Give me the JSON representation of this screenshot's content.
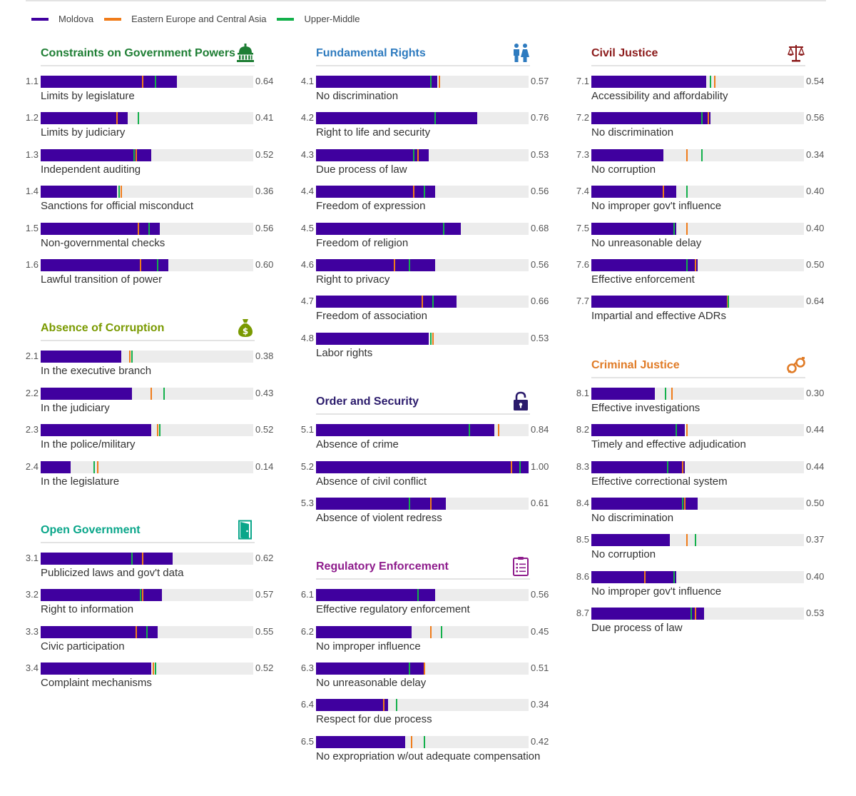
{
  "colors": {
    "moldova": "#40009f",
    "region": "#f07c1a",
    "income": "#13b04b",
    "track": "#ececec"
  },
  "legend": [
    {
      "key": "moldova",
      "label": "Moldova"
    },
    {
      "key": "region",
      "label": "Eastern Europe and Central Asia"
    },
    {
      "key": "income",
      "label": "Upper-Middle"
    }
  ],
  "chart_data": {
    "type": "bar",
    "orientation": "horizontal",
    "xlim": [
      0,
      1
    ],
    "series": [
      "Moldova",
      "Eastern Europe and Central Asia",
      "Upper-Middle"
    ],
    "columns": [
      [
        {
          "title": "Constraints on Government Powers",
          "color": "#1e7e34",
          "icon": "capitol-icon",
          "rows": [
            {
              "id": "1.1",
              "label": "Limits by legislature",
              "value": 0.64,
              "region": 0.48,
              "income": 0.54,
              "display": "0.64"
            },
            {
              "id": "1.2",
              "label": "Limits by judiciary",
              "value": 0.41,
              "region": 0.36,
              "income": 0.46,
              "display": "0.41"
            },
            {
              "id": "1.3",
              "label": "Independent auditing",
              "value": 0.52,
              "region": 0.45,
              "income": 0.44,
              "display": "0.52"
            },
            {
              "id": "1.4",
              "label": "Sanctions for official misconduct",
              "value": 0.36,
              "region": 0.38,
              "income": 0.37,
              "display": "0.36"
            },
            {
              "id": "1.5",
              "label": "Non-governmental checks",
              "value": 0.56,
              "region": 0.46,
              "income": 0.51,
              "display": "0.56"
            },
            {
              "id": "1.6",
              "label": "Lawful transition of power",
              "value": 0.6,
              "region": 0.47,
              "income": 0.55,
              "display": "0.60"
            }
          ]
        },
        {
          "title": "Absence of Corruption",
          "color": "#7a9a01",
          "icon": "money-bag-icon",
          "rows": [
            {
              "id": "2.1",
              "label": "In the executive branch",
              "value": 0.38,
              "region": 0.42,
              "income": 0.43,
              "display": "0.38"
            },
            {
              "id": "2.2",
              "label": "In the judiciary",
              "value": 0.43,
              "region": 0.52,
              "income": 0.58,
              "display": "0.43"
            },
            {
              "id": "2.3",
              "label": "In the police/military",
              "value": 0.52,
              "region": 0.55,
              "income": 0.56,
              "display": "0.52"
            },
            {
              "id": "2.4",
              "label": "In the legislature",
              "value": 0.14,
              "region": 0.27,
              "income": 0.25,
              "display": "0.14"
            }
          ]
        },
        {
          "title": "Open Government",
          "color": "#0aa68a",
          "icon": "door-icon",
          "rows": [
            {
              "id": "3.1",
              "label": "Publicized laws and gov't data",
              "value": 0.62,
              "region": 0.48,
              "income": 0.43,
              "display": "0.62"
            },
            {
              "id": "3.2",
              "label": "Right to information",
              "value": 0.57,
              "region": 0.48,
              "income": 0.47,
              "display": "0.57"
            },
            {
              "id": "3.3",
              "label": "Civic participation",
              "value": 0.55,
              "region": 0.45,
              "income": 0.5,
              "display": "0.55"
            },
            {
              "id": "3.4",
              "label": "Complaint mechanisms",
              "value": 0.52,
              "region": 0.53,
              "income": 0.54,
              "display": "0.52"
            }
          ]
        }
      ],
      [
        {
          "title": "Fundamental Rights",
          "color": "#2e7bbf",
          "icon": "people-icon",
          "rows": [
            {
              "id": "4.1",
              "label": "No discrimination",
              "value": 0.57,
              "region": 0.58,
              "income": 0.54,
              "display": "0.57"
            },
            {
              "id": "4.2",
              "label": "Right to life and security",
              "value": 0.76,
              "region": 0.56,
              "income": 0.56,
              "display": "0.76"
            },
            {
              "id": "4.3",
              "label": "Due process of law",
              "value": 0.53,
              "region": 0.48,
              "income": 0.46,
              "display": "0.53"
            },
            {
              "id": "4.4",
              "label": "Freedom of expression",
              "value": 0.56,
              "region": 0.46,
              "income": 0.51,
              "display": "0.56"
            },
            {
              "id": "4.5",
              "label": "Freedom of religion",
              "value": 0.68,
              "region": 0.6,
              "income": 0.6,
              "display": "0.68"
            },
            {
              "id": "4.6",
              "label": "Right to privacy",
              "value": 0.56,
              "region": 0.37,
              "income": 0.44,
              "display": "0.56"
            },
            {
              "id": "4.7",
              "label": "Freedom of association",
              "value": 0.66,
              "region": 0.5,
              "income": 0.55,
              "display": "0.66"
            },
            {
              "id": "4.8",
              "label": "Labor rights",
              "value": 0.53,
              "region": 0.55,
              "income": 0.54,
              "display": "0.53"
            }
          ]
        },
        {
          "title": "Order and Security",
          "color": "#2a1a6b",
          "icon": "unlock-icon",
          "rows": [
            {
              "id": "5.1",
              "label": "Absence of crime",
              "value": 0.84,
              "region": 0.86,
              "income": 0.72,
              "display": "0.84"
            },
            {
              "id": "5.2",
              "label": "Absence of civil conflict",
              "value": 1.0,
              "region": 0.92,
              "income": 0.96,
              "display": "1.00"
            },
            {
              "id": "5.3",
              "label": "Absence of violent redress",
              "value": 0.61,
              "region": 0.54,
              "income": 0.44,
              "display": "0.61"
            }
          ]
        },
        {
          "title": "Regulatory Enforcement",
          "color": "#8e1c8c",
          "icon": "clipboard-icon",
          "rows": [
            {
              "id": "6.1",
              "label": "Effective regulatory enforcement",
              "value": 0.56,
              "region": 0.48,
              "income": 0.48,
              "display": "0.56"
            },
            {
              "id": "6.2",
              "label": "No improper influence",
              "value": 0.45,
              "region": 0.54,
              "income": 0.59,
              "display": "0.45"
            },
            {
              "id": "6.3",
              "label": "No unreasonable delay",
              "value": 0.51,
              "region": 0.51,
              "income": 0.44,
              "display": "0.51"
            },
            {
              "id": "6.4",
              "label": "Respect for due process",
              "value": 0.34,
              "region": 0.32,
              "income": 0.38,
              "display": "0.34"
            },
            {
              "id": "6.5",
              "label": "No expropriation w/out adequate compensation",
              "value": 0.42,
              "region": 0.45,
              "income": 0.51,
              "display": "0.42"
            }
          ]
        }
      ],
      [
        {
          "title": "Civil Justice",
          "color": "#8b1a1a",
          "icon": "scales-icon",
          "rows": [
            {
              "id": "7.1",
              "label": "Accessibility and affordability",
              "value": 0.54,
              "region": 0.58,
              "income": 0.56,
              "display": "0.54"
            },
            {
              "id": "7.2",
              "label": "No discrimination",
              "value": 0.56,
              "region": 0.55,
              "income": 0.52,
              "display": "0.56"
            },
            {
              "id": "7.3",
              "label": "No corruption",
              "value": 0.34,
              "region": 0.45,
              "income": 0.52,
              "display": "0.34"
            },
            {
              "id": "7.4",
              "label": "No improper gov't influence",
              "value": 0.4,
              "region": 0.34,
              "income": 0.45,
              "display": "0.40"
            },
            {
              "id": "7.5",
              "label": "No unreasonable delay",
              "value": 0.4,
              "region": 0.45,
              "income": 0.39,
              "display": "0.40"
            },
            {
              "id": "7.6",
              "label": "Effective enforcement",
              "value": 0.5,
              "region": 0.49,
              "income": 0.45,
              "display": "0.50"
            },
            {
              "id": "7.7",
              "label": "Impartial and effective ADRs",
              "value": 0.64,
              "region": 0.64,
              "income": 0.645,
              "display": "0.64"
            }
          ]
        },
        {
          "title": "Criminal Justice",
          "color": "#e07b26",
          "icon": "handcuffs-icon",
          "rows": [
            {
              "id": "8.1",
              "label": "Effective investigations",
              "value": 0.3,
              "region": 0.38,
              "income": 0.35,
              "display": "0.30"
            },
            {
              "id": "8.2",
              "label": "Timely and effective adjudication",
              "value": 0.44,
              "region": 0.45,
              "income": 0.4,
              "display": "0.44"
            },
            {
              "id": "8.3",
              "label": "Effective correctional system",
              "value": 0.44,
              "region": 0.43,
              "income": 0.36,
              "display": "0.44"
            },
            {
              "id": "8.4",
              "label": "No discrimination",
              "value": 0.5,
              "region": 0.44,
              "income": 0.43,
              "display": "0.50"
            },
            {
              "id": "8.5",
              "label": "No corruption",
              "value": 0.37,
              "region": 0.45,
              "income": 0.49,
              "display": "0.37"
            },
            {
              "id": "8.6",
              "label": "No improper gov't influence",
              "value": 0.4,
              "region": 0.25,
              "income": 0.39,
              "display": "0.40"
            },
            {
              "id": "8.7",
              "label": "Due process of law",
              "value": 0.53,
              "region": 0.49,
              "income": 0.47,
              "display": "0.53"
            }
          ]
        }
      ]
    ]
  }
}
